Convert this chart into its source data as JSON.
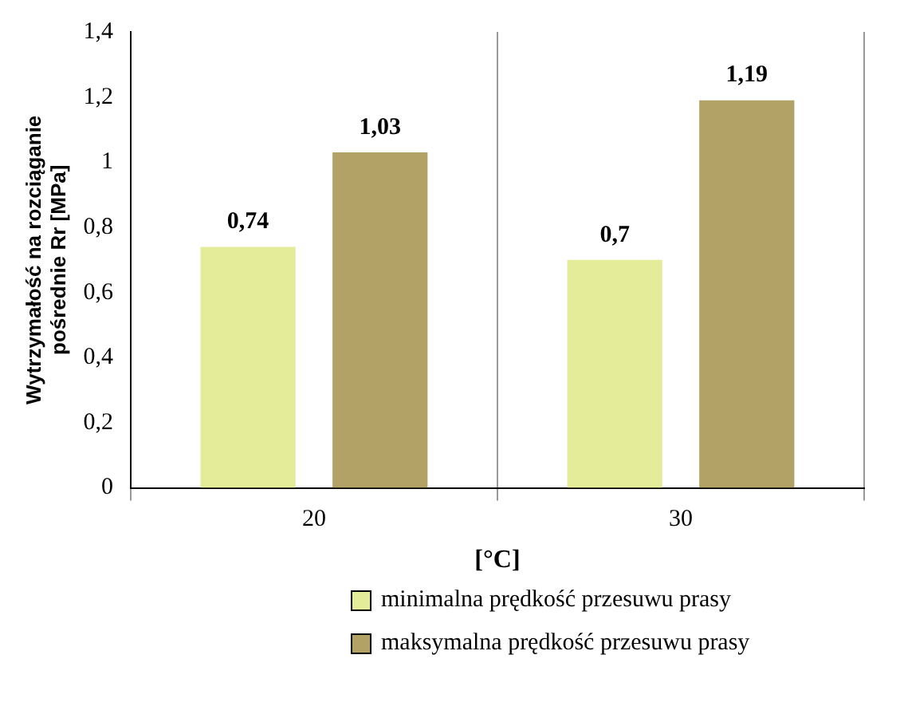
{
  "chart_data": {
    "type": "bar",
    "xlabel": "[°C]",
    "ylabel": "Wytrzymałość na rozciąganie pośrednie Rr [MPa]",
    "categories": [
      "20",
      "30"
    ],
    "series": [
      {
        "name": "minimalna prędkość przesuwu prasy",
        "color": "#e4ec9a",
        "values": [
          0.74,
          0.7
        ],
        "value_labels": [
          "0,74",
          "0,7"
        ]
      },
      {
        "name": "maksymalna prędkość przesuwu prasy",
        "color": "#b3a266",
        "values": [
          1.03,
          1.19
        ],
        "value_labels": [
          "1,03",
          "1,19"
        ]
      }
    ],
    "ylim": [
      0,
      1.4
    ],
    "yticks": [
      {
        "value": 0,
        "label": "0"
      },
      {
        "value": 0.2,
        "label": "0,2"
      },
      {
        "value": 0.4,
        "label": "0,4"
      },
      {
        "value": 0.6,
        "label": "0,6"
      },
      {
        "value": 0.8,
        "label": "0,8"
      },
      {
        "value": 1,
        "label": "1"
      },
      {
        "value": 1.2,
        "label": "1,2"
      },
      {
        "value": 1.4,
        "label": "1,4"
      }
    ],
    "grid": "x",
    "legend": "bottom"
  }
}
